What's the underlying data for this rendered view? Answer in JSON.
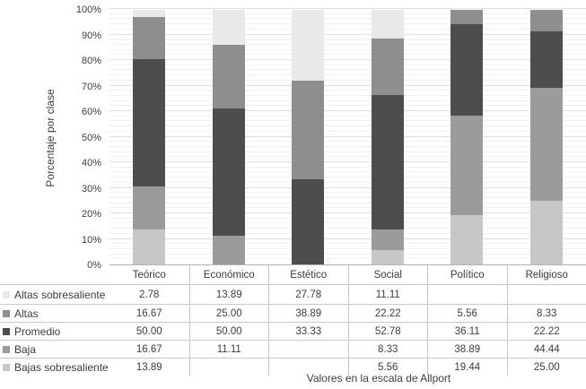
{
  "chart_data": {
    "type": "bar",
    "variant": "stacked-100-percent",
    "title": "",
    "xlabel": "Valores en la escala de Allport",
    "ylabel": "Porcentaje por clase",
    "ylim": [
      0,
      100
    ],
    "y_ticks": [
      "0%",
      "10%",
      "20%",
      "30%",
      "40%",
      "50%",
      "60%",
      "70%",
      "80%",
      "90%",
      "100%"
    ],
    "grid": {
      "minor_step_percent": 2,
      "major_step_percent": 10
    },
    "legend_position": "table-left-column",
    "categories": [
      "Teórico",
      "Económico",
      "Estético",
      "Social",
      "Político",
      "Religioso"
    ],
    "series": [
      {
        "name": "Altas sobresaliente",
        "color": "#e9e9e9",
        "values": [
          2.78,
          13.89,
          27.78,
          11.11,
          null,
          null
        ]
      },
      {
        "name": "Altas",
        "color": "#8e8e8e",
        "values": [
          16.67,
          25.0,
          38.89,
          22.22,
          5.56,
          8.33
        ]
      },
      {
        "name": "Promedio",
        "color": "#4d4d4d",
        "values": [
          50.0,
          50.0,
          33.33,
          52.78,
          36.11,
          22.22
        ]
      },
      {
        "name": "Baja",
        "color": "#9b9b9b",
        "values": [
          16.67,
          11.11,
          null,
          8.33,
          38.89,
          44.44
        ]
      },
      {
        "name": "Bajas sobresaliente",
        "color": "#c7c7c7",
        "values": [
          13.89,
          null,
          null,
          5.56,
          19.44,
          25.0
        ]
      }
    ],
    "stack_order_bottom_to_top": [
      "Bajas sobresaliente",
      "Baja",
      "Promedio",
      "Altas",
      "Altas sobresaliente"
    ]
  },
  "colors": {
    "gridline_minor": "#f1f1f1",
    "gridline_major": "#e0e0e0",
    "axis_line": "#b3b3b3",
    "table_border": "#c9c9c9",
    "text": "#3d3d3d",
    "background": "#ffffff"
  }
}
